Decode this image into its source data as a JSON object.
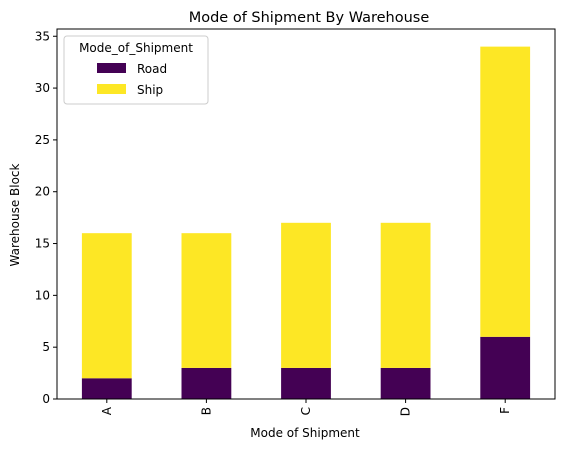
{
  "chart_data": {
    "type": "bar",
    "stacked": true,
    "title": "Mode of Shipment By Warehouse",
    "xlabel": "Mode of Shipment",
    "ylabel": "Warehouse Block",
    "categories": [
      "A",
      "B",
      "C",
      "D",
      "F"
    ],
    "series": [
      {
        "name": "Road",
        "values": [
          2,
          3,
          3,
          3,
          6
        ],
        "color": "#440154"
      },
      {
        "name": "Ship",
        "values": [
          14,
          13,
          14,
          14,
          28
        ],
        "color": "#fde725"
      }
    ],
    "ylim": [
      0,
      35.7
    ],
    "yticks": [
      0,
      5,
      10,
      15,
      20,
      25,
      30,
      35
    ],
    "grid": false,
    "legend": {
      "title": "Mode_of_Shipment",
      "placement": "top-left"
    }
  }
}
